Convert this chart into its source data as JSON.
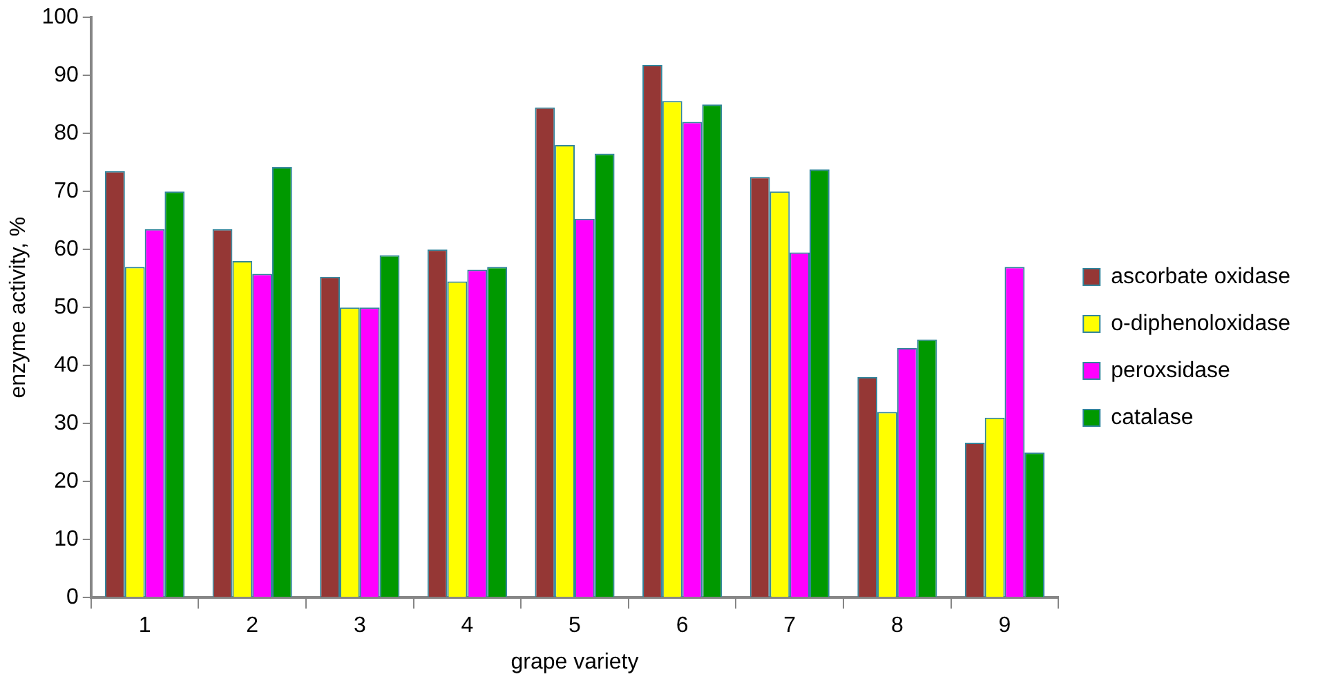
{
  "chart_data": {
    "type": "bar",
    "xlabel": "grape variety",
    "ylabel": "enzyme activity, %",
    "categories": [
      "1",
      "2",
      "3",
      "4",
      "5",
      "6",
      "7",
      "8",
      "9"
    ],
    "series": [
      {
        "name": "ascorbate oxidase",
        "color": "#953735",
        "values": [
          73.5,
          63.5,
          55.3,
          60,
          84.5,
          91.8,
          72.5,
          38,
          26.7
        ]
      },
      {
        "name": "o-diphenoloxidase",
        "color": "#ffff00",
        "values": [
          57,
          58,
          50,
          54.5,
          78,
          85.6,
          70,
          32,
          31
        ]
      },
      {
        "name": "peroxsidase",
        "color": "#ff00ff",
        "values": [
          63.5,
          55.8,
          50,
          56.5,
          65.3,
          82,
          59.5,
          43,
          57
        ]
      },
      {
        "name": "catalase",
        "color": "#009900",
        "values": [
          70,
          74.2,
          59,
          57,
          76.5,
          85,
          73.8,
          44.5,
          25
        ]
      }
    ],
    "ylim": [
      0,
      100
    ],
    "yticks": [
      0,
      10,
      20,
      30,
      40,
      50,
      60,
      70,
      80,
      90,
      100
    ],
    "grid": false,
    "legend": "right"
  }
}
